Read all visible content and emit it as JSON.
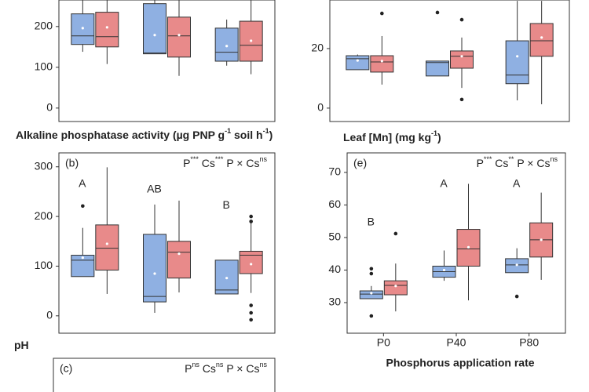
{
  "chart_data": [
    {
      "type": "box",
      "categories": [
        null,
        null,
        null
      ],
      "ylim": [
        -33,
        265
      ],
      "yticks": [
        0,
        100,
        200
      ],
      "series": [
        {
          "color": "#8fb0e2",
          "boxes": [
            {
              "whislo": 138,
              "q1": 156,
              "med": 177,
              "q3": 231,
              "whishi": 265,
              "mean": 196,
              "fliers": []
            },
            {
              "whislo": 133,
              "q1": 133,
              "med": 135,
              "q3": 256,
              "whishi": 265,
              "mean": 179,
              "fliers": []
            },
            {
              "whislo": 104,
              "q1": 115,
              "med": 137,
              "q3": 196,
              "whishi": 217,
              "mean": 152,
              "fliers": []
            }
          ]
        },
        {
          "color": "#e88a8a",
          "boxes": [
            {
              "whislo": 108,
              "q1": 150,
              "med": 175,
              "q3": 235,
              "whishi": 265,
              "mean": 198,
              "fliers": []
            },
            {
              "whislo": 79,
              "q1": 125,
              "med": 177,
              "q3": 223,
              "whishi": 265,
              "mean": 179,
              "fliers": []
            },
            {
              "whislo": 83,
              "q1": 115,
              "med": 154,
              "q3": 213,
              "whishi": 265,
              "mean": 165,
              "fliers": []
            }
          ]
        }
      ]
    },
    {
      "type": "box",
      "categories": [
        null,
        null,
        null
      ],
      "ylim": [
        -4.5,
        36.3
      ],
      "yticks": [
        0,
        20
      ],
      "series": [
        {
          "color": "#8fb0e2",
          "boxes": [
            {
              "whislo": 12.9,
              "q1": 12.9,
              "med": 16.6,
              "q3": 17.6,
              "whishi": 18,
              "mean": 16,
              "fliers": []
            },
            {
              "whislo": 10.8,
              "q1": 10.8,
              "med": 15.3,
              "q3": 15.8,
              "whishi": 15.8,
              "mean": 17.9,
              "fliers": [
                32.1
              ]
            },
            {
              "whislo": 2.6,
              "q1": 8.2,
              "med": 11.1,
              "q3": 22.6,
              "whishi": 36,
              "mean": 17.4,
              "fliers": []
            }
          ]
        },
        {
          "color": "#e88a8a",
          "boxes": [
            {
              "whislo": 7.9,
              "q1": 12.1,
              "med": 15.5,
              "q3": 17.6,
              "whishi": 24.2,
              "mean": 15.8,
              "fliers": [
                31.8
              ]
            },
            {
              "whislo": 6.8,
              "q1": 13.4,
              "med": 17.4,
              "q3": 19.2,
              "whishi": 23.7,
              "mean": 17.4,
              "fliers": [
                29.7,
                2.9
              ]
            },
            {
              "whislo": 1.3,
              "q1": 17.4,
              "med": 22.6,
              "q3": 28.4,
              "whishi": 36,
              "mean": 23.7,
              "fliers": []
            }
          ]
        }
      ]
    },
    {
      "type": "box",
      "panel_label": "(b)",
      "categories": [
        null,
        null,
        null
      ],
      "ylim": [
        -35,
        328
      ],
      "yticks": [
        0,
        100,
        200,
        300
      ],
      "title": [
        {
          "text": "Alkaline phosphatase activity (µg PNP g"
        },
        {
          "text": "-1",
          "sup": true
        },
        {
          "text": " soil h"
        },
        {
          "text": "-1",
          "sup": true
        },
        {
          "text": ")"
        }
      ],
      "annotation": [
        {
          "text": "P"
        },
        {
          "text": "***",
          "sup": true
        },
        {
          "text": " Cs"
        },
        {
          "text": "***",
          "sup": true
        },
        {
          "text": " P × Cs"
        },
        {
          "text": "ns",
          "sup": true
        }
      ],
      "letters": [
        "A",
        "AB",
        "B"
      ],
      "series": [
        {
          "color": "#8fb0e2",
          "boxes": [
            {
              "whislo": 79,
              "q1": 79,
              "med": 112,
              "q3": 122,
              "whishi": 177,
              "mean": 117,
              "fliers": [
                221
              ]
            },
            {
              "whislo": 6,
              "q1": 28,
              "med": 39,
              "q3": 164,
              "whishi": 224,
              "mean": 85,
              "fliers": []
            },
            {
              "whislo": 44,
              "q1": 44,
              "med": 52,
              "q3": 112,
              "whishi": 112,
              "mean": 76,
              "fliers": []
            }
          ]
        },
        {
          "color": "#e88a8a",
          "boxes": [
            {
              "whislo": 44,
              "q1": 92,
              "med": 136,
              "q3": 183,
              "whishi": 299,
              "mean": 145,
              "fliers": []
            },
            {
              "whislo": 47,
              "q1": 76,
              "med": 128,
              "q3": 150,
              "whishi": 232,
              "mean": 125,
              "fliers": []
            },
            {
              "whislo": 46,
              "q1": 85,
              "med": 122,
              "q3": 130,
              "whishi": 188,
              "mean": 104,
              "fliers": [
                200,
                190,
                21,
                6,
                -8
              ]
            }
          ]
        }
      ]
    },
    {
      "type": "box",
      "panel_label": "(e)",
      "categories": [
        "P0",
        "P40",
        "P80"
      ],
      "ylim": [
        20.6,
        76
      ],
      "yticks": [
        30,
        40,
        50,
        60,
        70
      ],
      "title": [
        {
          "text": "Leaf [Mn] (mg kg"
        },
        {
          "text": "-1",
          "sup": true
        },
        {
          "text": ")"
        }
      ],
      "xlabel": "Phosphorus application rate",
      "annotation": [
        {
          "text": "P"
        },
        {
          "text": "***",
          "sup": true
        },
        {
          "text": " Cs"
        },
        {
          "text": "**",
          "sup": true
        },
        {
          "text": " P × Cs"
        },
        {
          "text": "ns",
          "sup": true
        }
      ],
      "letters": [
        "B",
        "A",
        "A"
      ],
      "series": [
        {
          "color": "#8fb0e2",
          "boxes": [
            {
              "whislo": 31.2,
              "q1": 31.2,
              "med": 32.6,
              "q3": 33.6,
              "whishi": 35.1,
              "mean": 32.9,
              "fliers": [
                40.4,
                38.9,
                25.9
              ]
            },
            {
              "whislo": 36.7,
              "q1": 37.8,
              "med": 39.5,
              "q3": 41.2,
              "whishi": 46,
              "mean": 40,
              "fliers": []
            },
            {
              "whislo": 39.2,
              "q1": 39.2,
              "med": 41.6,
              "q3": 43.5,
              "whishi": 46.7,
              "mean": 41.6,
              "fliers": [
                31.9
              ]
            }
          ]
        },
        {
          "color": "#e88a8a",
          "boxes": [
            {
              "whislo": 27.3,
              "q1": 32.4,
              "med": 35.3,
              "q3": 36.7,
              "whishi": 42,
              "mean": 35.1,
              "fliers": [
                51.2
              ]
            },
            {
              "whislo": 30.7,
              "q1": 41.2,
              "med": 46.5,
              "q3": 52.5,
              "whishi": 66.5,
              "mean": 47,
              "fliers": []
            },
            {
              "whislo": 37,
              "q1": 44,
              "med": 49.3,
              "q3": 54.5,
              "whishi": 63.8,
              "mean": 49.3,
              "fliers": []
            }
          ]
        }
      ]
    },
    {
      "type": "box",
      "panel_label": "(c)",
      "title": [
        {
          "text": "pH"
        }
      ],
      "annotation": [
        {
          "text": "P"
        },
        {
          "text": "ns",
          "sup": true
        },
        {
          "text": " Cs"
        },
        {
          "text": "ns",
          "sup": true
        },
        {
          "text": " P × Cs"
        },
        {
          "text": "ns",
          "sup": true
        }
      ],
      "series": []
    }
  ]
}
